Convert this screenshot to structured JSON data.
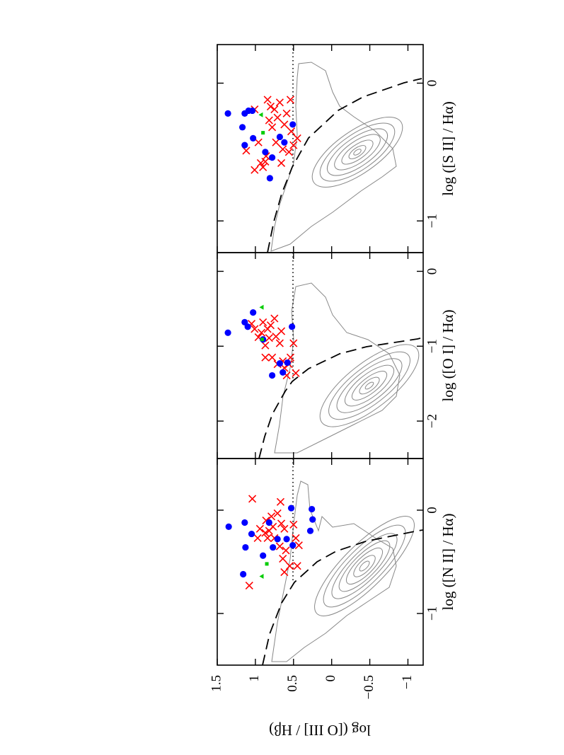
{
  "chart_data": [
    {
      "type": "scatter",
      "xlabel": "log ([N II] / Hα)",
      "ylabel": "log ([O III] / Hβ)",
      "xlim": [
        -1.5,
        0.5
      ],
      "xticks": [
        {
          "value": -1,
          "label": "−1"
        },
        0
      ],
      "ylim": [
        -1.2,
        1.5
      ],
      "yticks": [
        {
          "value": -1,
          "label": "−1"
        },
        {
          "value": -0.5,
          "label": "−0.5"
        },
        0,
        0.5,
        1,
        1.5
      ],
      "series": [
        {
          "color": "#ff0000",
          "marker": "cross",
          "x": [
            0.11,
            -0.73,
            -0.27,
            -0.18,
            -0.22,
            -0.1,
            -0.27,
            -0.2,
            -0.06,
            -0.16,
            -0.27,
            -0.03,
            -0.35,
            -0.13,
            -0.47,
            -0.18,
            -0.39,
            -0.54,
            -0.14,
            -0.27,
            -0.54,
            -0.34,
            0.08,
            -0.6
          ],
          "y": [
            1.04,
            1.08,
            0.97,
            0.94,
            0.87,
            0.86,
            0.84,
            0.82,
            0.79,
            0.77,
            0.75,
            0.71,
            0.68,
            0.66,
            0.64,
            0.62,
            0.6,
            0.55,
            0.5,
            0.47,
            0.45,
            0.43,
            0.67,
            0.62
          ]
        },
        {
          "color": "#0000ff",
          "marker": "circle",
          "x": [
            -0.16,
            -0.12,
            -0.23,
            -0.36,
            -0.62,
            -0.44,
            -0.12,
            -0.36,
            -0.28,
            -0.28,
            0.02,
            -0.34,
            0.01,
            -0.09,
            -0.2
          ],
          "y": [
            1.35,
            1.14,
            1.05,
            1.13,
            1.16,
            0.9,
            0.82,
            0.77,
            0.71,
            0.59,
            0.53,
            0.51,
            0.26,
            0.25,
            0.28
          ]
        },
        {
          "color": "#00cc00",
          "marker": "triangle",
          "x": [
            -0.64
          ],
          "y": [
            0.92
          ]
        },
        {
          "color": "#00cc00",
          "marker": "square",
          "x": [
            -0.52
          ],
          "y": [
            0.85
          ]
        }
      ]
    },
    {
      "type": "scatter",
      "xlabel": "log ([O I] / Hα)",
      "xlim": [
        -2.5,
        0.25
      ],
      "xticks": [
        {
          "value": -2,
          "label": "−2"
        },
        {
          "value": -1,
          "label": "−1"
        },
        0
      ],
      "ylim": [
        -1.2,
        1.5
      ],
      "series": [
        {
          "color": "#ff0000",
          "marker": "cross",
          "x": [
            -0.7,
            -0.77,
            -0.88,
            -0.82,
            -0.68,
            -0.99,
            -0.77,
            -0.89,
            -0.72,
            -1.15,
            -0.87,
            -1.24,
            -0.96,
            -0.8,
            -1.2,
            -1.29,
            -1.39,
            -1.24,
            -1.15,
            -0.96,
            -1.36,
            -1.15,
            -0.63
          ],
          "y": [
            1.05,
            1.01,
            0.96,
            0.92,
            0.9,
            0.87,
            0.84,
            0.82,
            0.8,
            0.78,
            0.73,
            0.71,
            0.68,
            0.66,
            0.64,
            0.62,
            0.59,
            0.56,
            0.54,
            0.5,
            0.47,
            0.87,
            0.75
          ]
        },
        {
          "color": "#0000ff",
          "marker": "circle",
          "x": [
            -0.82,
            -0.68,
            -0.74,
            -0.55,
            -0.91,
            -1.39,
            -1.23,
            -1.35,
            -1.22,
            -0.74
          ],
          "y": [
            1.36,
            1.14,
            1.1,
            1.03,
            0.9,
            0.78,
            0.68,
            0.64,
            0.58,
            0.52
          ]
        },
        {
          "color": "#00cc00",
          "marker": "triangle",
          "x": [
            -0.48
          ],
          "y": [
            0.92
          ]
        },
        {
          "color": "#00cc00",
          "marker": "square",
          "x": [
            -0.91
          ],
          "y": [
            0.91
          ]
        }
      ]
    },
    {
      "type": "scatter",
      "xlabel": "log ([S II] / Hα)",
      "xlim": [
        -1.23,
        0.28
      ],
      "xticks": [
        {
          "value": -1,
          "label": "−1"
        },
        0
      ],
      "ylim": [
        -1.2,
        1.5
      ],
      "series": [
        {
          "color": "#ff0000",
          "marker": "cross",
          "x": [
            -0.49,
            -0.63,
            -0.19,
            -0.58,
            -0.61,
            -0.53,
            -0.12,
            -0.27,
            -0.17,
            -0.32,
            -0.19,
            -0.43,
            -0.25,
            -0.14,
            -0.58,
            -0.48,
            -0.3,
            -0.22,
            -0.5,
            -0.12,
            -0.35,
            -0.45,
            -0.4,
            -0.57,
            -0.43
          ],
          "y": [
            1.12,
            1.01,
            1.01,
            0.93,
            0.9,
            0.86,
            0.84,
            0.82,
            0.8,
            0.78,
            0.75,
            0.73,
            0.71,
            0.68,
            0.66,
            0.64,
            0.62,
            0.59,
            0.56,
            0.54,
            0.53,
            0.5,
            0.45,
            0.87,
            0.96
          ]
        },
        {
          "color": "#0000ff",
          "marker": "circle",
          "x": [
            -0.22,
            -0.22,
            -0.2,
            -0.2,
            -0.32,
            -0.45,
            -0.4,
            -0.5,
            -0.69,
            -0.54,
            -0.39,
            -0.43,
            -0.3
          ],
          "y": [
            1.36,
            1.14,
            1.09,
            1.04,
            1.17,
            1.14,
            1.03,
            0.87,
            0.81,
            0.78,
            0.68,
            0.62,
            0.51
          ]
        },
        {
          "color": "#00cc00",
          "marker": "triangle",
          "x": [
            -0.23
          ],
          "y": [
            0.93
          ]
        },
        {
          "color": "#00cc00",
          "marker": "square",
          "x": [
            -0.36
          ],
          "y": [
            0.9
          ]
        }
      ]
    }
  ]
}
